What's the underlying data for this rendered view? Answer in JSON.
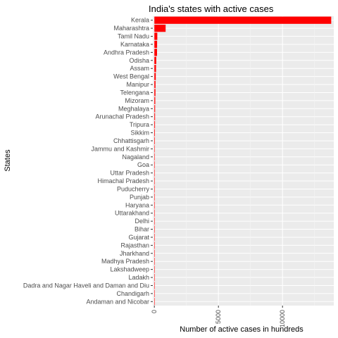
{
  "chart_data": {
    "type": "bar",
    "orientation": "horizontal",
    "title": "India's states with active cases",
    "xlabel": "Number of active cases in hundreds",
    "ylabel": "States",
    "xlim": [
      -120,
      14000
    ],
    "x_ticks": [
      0,
      5000,
      10000
    ],
    "x_tick_labels": [
      "0",
      "5000",
      "10000"
    ],
    "grid": true,
    "panel_color": "#ebebeb",
    "bar_color": "#ff0000",
    "categories": [
      "Kerala",
      "Maharashtra",
      "Tamil Nadu",
      "Karnataka",
      "Andhra Pradesh",
      "Odisha",
      "Assam",
      "West Bengal",
      "Manipur",
      "Telengana",
      "Mizoram",
      "Meghalaya",
      "Arunachal Pradesh",
      "Tripura",
      "Sikkim",
      "Chhattisgarh",
      "Jammu and Kashmir",
      "Nagaland",
      "Goa",
      "Uttar Pradesh",
      "Himachal Pradesh",
      "Puducherry",
      "Punjab",
      "Haryana",
      "Uttarakhand",
      "Delhi",
      "Bihar",
      "Gujarat",
      "Rajasthan",
      "Jharkhand",
      "Madhya Pradesh",
      "Lakshadweep",
      "Ladakh",
      "Dadra and Nagar Haveli and Daman and Diu",
      "Chandigarh",
      "Andaman and Nicobar"
    ],
    "values": [
      13800,
      880,
      230,
      215,
      210,
      150,
      130,
      110,
      90,
      85,
      70,
      60,
      55,
      50,
      45,
      40,
      25,
      20,
      18,
      15,
      12,
      10,
      8,
      7,
      6,
      5,
      4,
      4,
      3,
      3,
      2,
      2,
      1,
      1,
      1,
      1
    ]
  }
}
